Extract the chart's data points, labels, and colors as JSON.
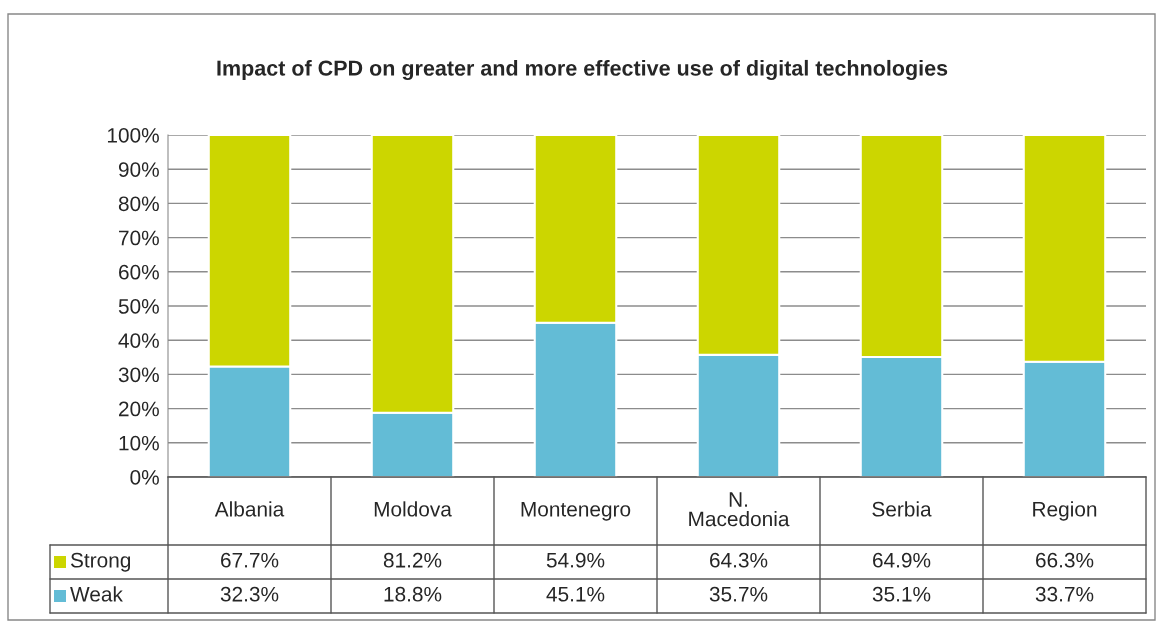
{
  "chart_data": {
    "type": "bar",
    "title": "Impact of CPD on greater and more effective use of digital technologies",
    "categories": [
      "Albania",
      "Moldova",
      "Montenegro",
      "N.\nMacedonia",
      "Serbia",
      "Region"
    ],
    "stacked": true,
    "series": [
      {
        "name": "Weak",
        "color": "#63bcd6",
        "values": [
          32.3,
          18.8,
          45.1,
          35.7,
          35.1,
          33.7
        ],
        "value_labels": [
          "32.3%",
          "18.8%",
          "45.1%",
          "35.7%",
          "35.1%",
          "33.7%"
        ]
      },
      {
        "name": "Strong",
        "color": "#ccd600",
        "values": [
          67.7,
          81.2,
          54.9,
          64.3,
          64.9,
          66.3
        ],
        "value_labels": [
          "67.7%",
          "81.2%",
          "54.9%",
          "64.3%",
          "64.9%",
          "66.3%"
        ]
      }
    ],
    "ylim": [
      0,
      100
    ],
    "yticks": [
      {
        "value": 0,
        "label": "0%"
      },
      {
        "value": 10,
        "label": "10%"
      },
      {
        "value": 20,
        "label": "20%"
      },
      {
        "value": 30,
        "label": "30%"
      },
      {
        "value": 40,
        "label": "40%"
      },
      {
        "value": 50,
        "label": "50%"
      },
      {
        "value": 60,
        "label": "60%"
      },
      {
        "value": 70,
        "label": "70%"
      },
      {
        "value": 80,
        "label": "80%"
      },
      {
        "value": 90,
        "label": "90%"
      },
      {
        "value": 100,
        "label": "100%"
      }
    ],
    "grid": "y",
    "legend": "bottom"
  }
}
